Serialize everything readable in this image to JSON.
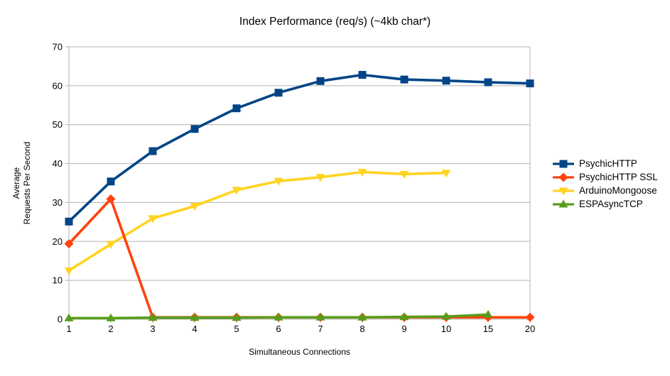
{
  "chart": {
    "title": "Index Performance (req/s) (~4kb char*)",
    "x_axis_title": "Simultaneous Connections",
    "y_axis_title_lines": [
      "Average",
      "Requests Per Second"
    ]
  },
  "chart_data": {
    "type": "line",
    "title": "Index Performance (req/s) (~4kb char*)",
    "xlabel": "Simultaneous Connections",
    "ylabel": "Average Requests Per Second",
    "categories": [
      1,
      2,
      3,
      4,
      5,
      6,
      7,
      8,
      9,
      10,
      15,
      20
    ],
    "ylim": [
      0,
      70
    ],
    "y_ticks": [
      0,
      10,
      20,
      30,
      40,
      50,
      60,
      70
    ],
    "grid": true,
    "legend_position": "right",
    "draw_order": [
      2,
      0,
      1,
      3
    ],
    "series": [
      {
        "name": "PsychicHTTP",
        "color": "#004586",
        "marker": "square",
        "values": [
          25.1,
          35.4,
          43.2,
          48.9,
          54.2,
          58.2,
          61.2,
          62.8,
          61.6,
          61.3,
          60.9,
          60.6
        ]
      },
      {
        "name": "PsychicHTTP SSL",
        "color": "#FF420E",
        "marker": "diamond",
        "values": [
          19.4,
          30.9,
          0.5,
          0.5,
          0.5,
          0.5,
          0.5,
          0.5,
          0.5,
          0.5,
          0.5,
          0.5
        ]
      },
      {
        "name": "ArduinoMongoose",
        "color": "#FFD320",
        "marker": "triangle-down",
        "values": [
          12.5,
          19.3,
          25.9,
          29.1,
          33.2,
          35.5,
          36.5,
          37.8,
          37.3,
          37.6,
          null,
          null
        ]
      },
      {
        "name": "ESPAsyncTCP",
        "color": "#579D1C",
        "marker": "triangle-up",
        "values": [
          0.3,
          0.3,
          0.4,
          0.4,
          0.4,
          0.5,
          0.5,
          0.5,
          0.6,
          0.7,
          1.2,
          null
        ]
      }
    ],
    "colors": {
      "grid": "#B3B3B3",
      "text": "#000000",
      "background": "#FFFFFF"
    }
  }
}
